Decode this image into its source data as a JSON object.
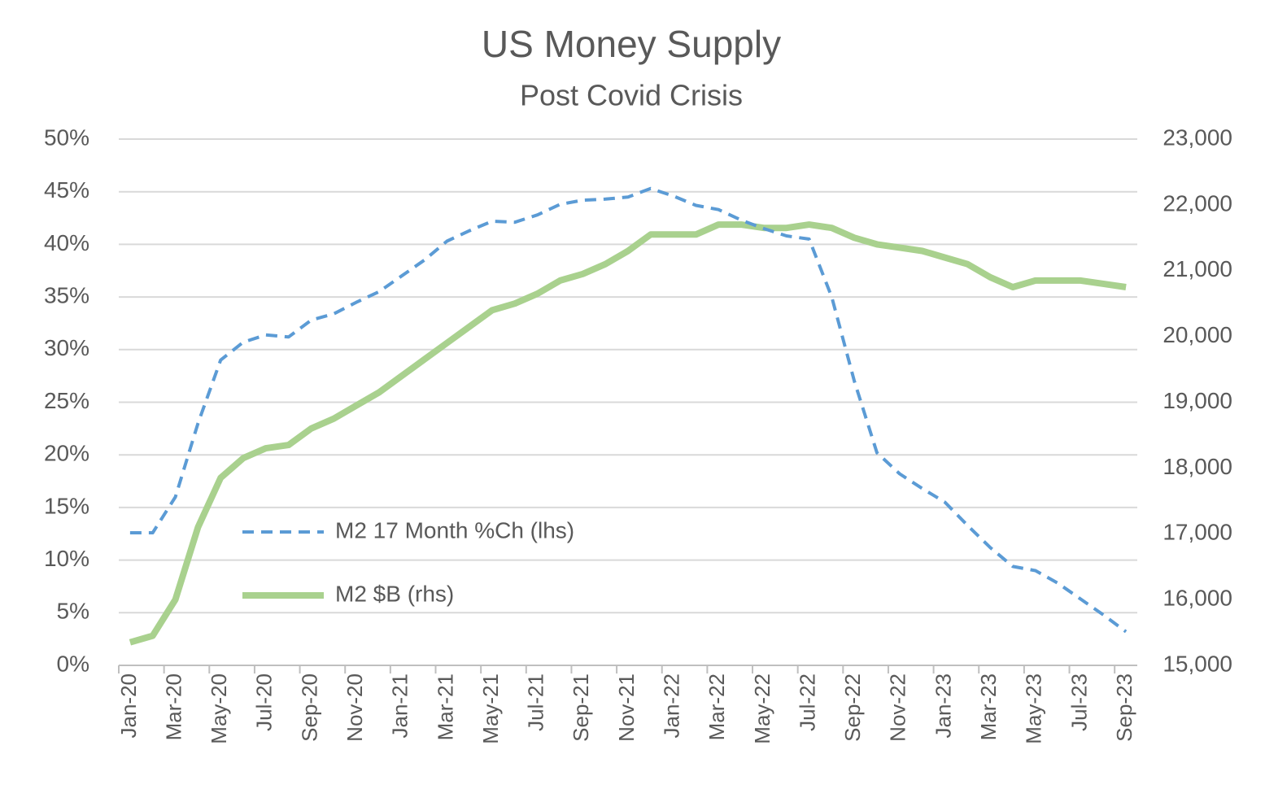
{
  "chart_data": {
    "type": "line",
    "title": "US Money Supply",
    "subtitle": "Post Covid Crisis",
    "categories": [
      "Jan-20",
      null,
      "Mar-20",
      null,
      "May-20",
      null,
      "Jul-20",
      null,
      "Sep-20",
      null,
      "Nov-20",
      null,
      "Jan-21",
      null,
      "Mar-21",
      null,
      "May-21",
      null,
      "Jul-21",
      null,
      "Sep-21",
      null,
      "Nov-21",
      null,
      "Jan-22",
      null,
      "Mar-22",
      null,
      "May-22",
      null,
      "Jul-22",
      null,
      "Sep-22",
      null,
      "Nov-22",
      null,
      "Jan-23",
      null,
      "Mar-23",
      null,
      "May-23",
      null,
      "Jul-23",
      null,
      "Sep-23"
    ],
    "series": [
      {
        "name": "M2 17 Month %Ch (lhs)",
        "color": "#5b9bd5",
        "dashed": true,
        "axis": "y",
        "values": [
          12.6,
          12.6,
          16,
          23,
          29,
          30.7,
          31.4,
          31.2,
          32.8,
          33.4,
          34.5,
          35.5,
          37,
          38.5,
          40.3,
          41.3,
          42.2,
          42.1,
          42.8,
          43.8,
          44.2,
          44.3,
          44.5,
          45.3,
          44.6,
          43.7,
          43.3,
          42.3,
          41.5,
          40.8,
          40.5,
          35,
          27,
          20.2,
          18.2,
          16.8,
          15.5,
          13.3,
          11.2,
          9.4,
          9,
          7.8,
          6.3,
          4.8,
          3.2
        ]
      },
      {
        "name": "M2 $B (rhs)",
        "color": "#a9d18e",
        "dashed": false,
        "axis": "y2",
        "values": [
          15350,
          15450,
          16000,
          17100,
          17850,
          18150,
          18300,
          18350,
          18600,
          18750,
          18950,
          19150,
          19400,
          19650,
          19900,
          20150,
          20400,
          20500,
          20650,
          20850,
          20950,
          21100,
          21300,
          21550,
          21550,
          21550,
          21700,
          21700,
          21650,
          21650,
          21700,
          21650,
          21500,
          21400,
          21350,
          21300,
          21200,
          21100,
          20900,
          20750,
          20850,
          20850,
          20850,
          20800,
          20750
        ]
      }
    ],
    "ylim": [
      0,
      50
    ],
    "yticks": [
      {
        "value": 0,
        "label": "0%"
      },
      {
        "value": 5,
        "label": "5%"
      },
      {
        "value": 10,
        "label": "10%"
      },
      {
        "value": 15,
        "label": "15%"
      },
      {
        "value": 20,
        "label": "20%"
      },
      {
        "value": 25,
        "label": "25%"
      },
      {
        "value": 30,
        "label": "30%"
      },
      {
        "value": 35,
        "label": "35%"
      },
      {
        "value": 40,
        "label": "40%"
      },
      {
        "value": 45,
        "label": "45%"
      },
      {
        "value": 50,
        "label": "50%"
      }
    ],
    "y2lim": [
      15000,
      23000
    ],
    "y2ticks": [
      {
        "value": 15000,
        "label": "15,000"
      },
      {
        "value": 16000,
        "label": "16,000"
      },
      {
        "value": 17000,
        "label": "17,000"
      },
      {
        "value": 18000,
        "label": "18,000"
      },
      {
        "value": 19000,
        "label": "19,000"
      },
      {
        "value": 20000,
        "label": "20,000"
      },
      {
        "value": 21000,
        "label": "21,000"
      },
      {
        "value": 22000,
        "label": "22,000"
      },
      {
        "value": 23000,
        "label": "23,000"
      }
    ],
    "grid": true
  }
}
